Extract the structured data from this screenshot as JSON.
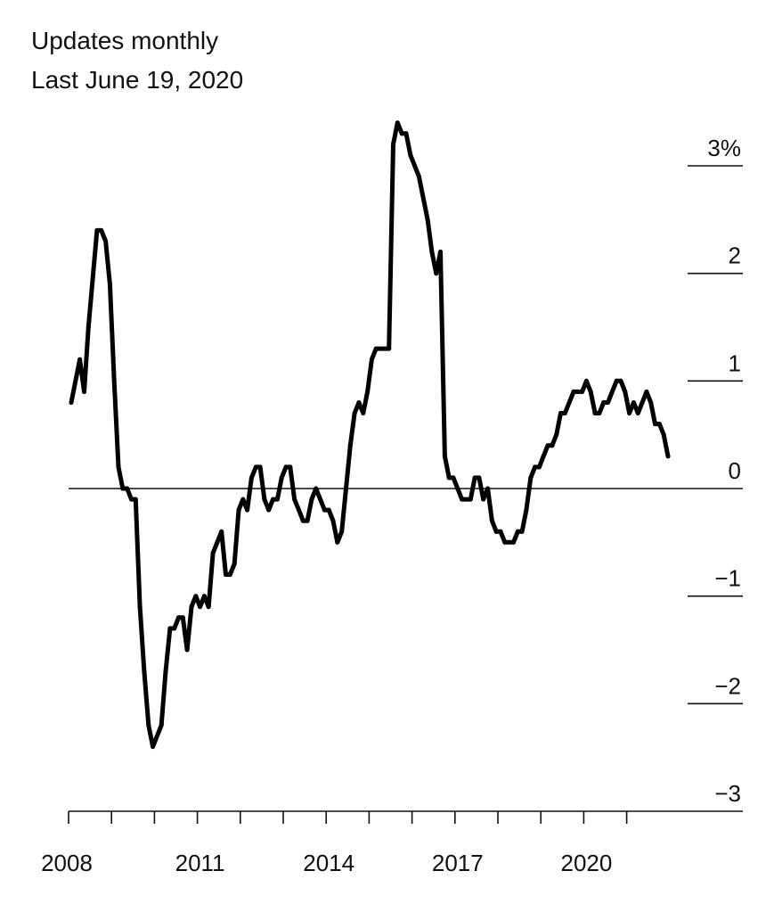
{
  "header": {
    "line1": "Updates monthly",
    "line2": "Last June 19, 2020"
  },
  "chart_data": {
    "type": "line",
    "title": "",
    "xlabel": "",
    "ylabel": "",
    "ylim": [
      -3,
      3
    ],
    "xlim": [
      2008,
      2021.9
    ],
    "y_ticks": [
      {
        "value": 3,
        "label": "3%"
      },
      {
        "value": 2,
        "label": "2"
      },
      {
        "value": 1,
        "label": "1"
      },
      {
        "value": 0,
        "label": "0"
      },
      {
        "value": -1,
        "label": "−1"
      },
      {
        "value": -2,
        "label": "−2"
      },
      {
        "value": -3,
        "label": "−3"
      }
    ],
    "x_labels": [
      {
        "value": 2008,
        "label": "2008"
      },
      {
        "value": 2011,
        "label": "2011"
      },
      {
        "value": 2014,
        "label": "2014"
      },
      {
        "value": 2017,
        "label": "2017"
      },
      {
        "value": 2020,
        "label": "2020"
      }
    ],
    "x_ticks": [
      2008,
      2009,
      2010,
      2011,
      2012,
      2013,
      2014,
      2015,
      2016,
      2017,
      2018,
      2019,
      2020,
      2021
    ],
    "zero_line": true,
    "grid": false,
    "line_color": "#000000",
    "series": [
      {
        "values": [
          {
            "x": 2008.0,
            "y": 0.8
          },
          {
            "x": 2008.2,
            "y": 1.2
          },
          {
            "x": 2008.3,
            "y": 0.9
          },
          {
            "x": 2008.4,
            "y": 1.5
          },
          {
            "x": 2008.6,
            "y": 2.4
          },
          {
            "x": 2008.7,
            "y": 2.4
          },
          {
            "x": 2008.8,
            "y": 2.3
          },
          {
            "x": 2008.9,
            "y": 1.9
          },
          {
            "x": 2009.0,
            "y": 1.0
          },
          {
            "x": 2009.1,
            "y": 0.2
          },
          {
            "x": 2009.2,
            "y": 0.0
          },
          {
            "x": 2009.3,
            "y": 0.0
          },
          {
            "x": 2009.4,
            "y": -0.1
          },
          {
            "x": 2009.5,
            "y": -0.1
          },
          {
            "x": 2009.6,
            "y": -1.1
          },
          {
            "x": 2009.7,
            "y": -1.7
          },
          {
            "x": 2009.8,
            "y": -2.2
          },
          {
            "x": 2009.9,
            "y": -2.4
          },
          {
            "x": 2010.1,
            "y": -2.2
          },
          {
            "x": 2010.2,
            "y": -1.7
          },
          {
            "x": 2010.3,
            "y": -1.3
          },
          {
            "x": 2010.4,
            "y": -1.3
          },
          {
            "x": 2010.5,
            "y": -1.2
          },
          {
            "x": 2010.6,
            "y": -1.2
          },
          {
            "x": 2010.7,
            "y": -1.5
          },
          {
            "x": 2010.8,
            "y": -1.1
          },
          {
            "x": 2010.9,
            "y": -1.0
          },
          {
            "x": 2011.0,
            "y": -1.1
          },
          {
            "x": 2011.1,
            "y": -1.0
          },
          {
            "x": 2011.2,
            "y": -1.1
          },
          {
            "x": 2011.3,
            "y": -0.6
          },
          {
            "x": 2011.5,
            "y": -0.4
          },
          {
            "x": 2011.6,
            "y": -0.8
          },
          {
            "x": 2011.7,
            "y": -0.8
          },
          {
            "x": 2011.8,
            "y": -0.7
          },
          {
            "x": 2011.9,
            "y": -0.2
          },
          {
            "x": 2012.0,
            "y": -0.1
          },
          {
            "x": 2012.1,
            "y": -0.2
          },
          {
            "x": 2012.2,
            "y": 0.1
          },
          {
            "x": 2012.3,
            "y": 0.2
          },
          {
            "x": 2012.4,
            "y": 0.2
          },
          {
            "x": 2012.5,
            "y": -0.1
          },
          {
            "x": 2012.6,
            "y": -0.2
          },
          {
            "x": 2012.7,
            "y": -0.1
          },
          {
            "x": 2012.8,
            "y": -0.1
          },
          {
            "x": 2012.9,
            "y": 0.1
          },
          {
            "x": 2013.0,
            "y": 0.2
          },
          {
            "x": 2013.1,
            "y": 0.2
          },
          {
            "x": 2013.2,
            "y": -0.1
          },
          {
            "x": 2013.3,
            "y": -0.2
          },
          {
            "x": 2013.4,
            "y": -0.3
          },
          {
            "x": 2013.5,
            "y": -0.3
          },
          {
            "x": 2013.6,
            "y": -0.1
          },
          {
            "x": 2013.7,
            "y": 0.0
          },
          {
            "x": 2013.8,
            "y": -0.1
          },
          {
            "x": 2013.9,
            "y": -0.2
          },
          {
            "x": 2014.0,
            "y": -0.2
          },
          {
            "x": 2014.1,
            "y": -0.3
          },
          {
            "x": 2014.2,
            "y": -0.5
          },
          {
            "x": 2014.3,
            "y": -0.4
          },
          {
            "x": 2014.4,
            "y": 0.0
          },
          {
            "x": 2014.5,
            "y": 0.4
          },
          {
            "x": 2014.6,
            "y": 0.7
          },
          {
            "x": 2014.7,
            "y": 0.8
          },
          {
            "x": 2014.8,
            "y": 0.7
          },
          {
            "x": 2014.9,
            "y": 0.9
          },
          {
            "x": 2015.0,
            "y": 1.2
          },
          {
            "x": 2015.1,
            "y": 1.3
          },
          {
            "x": 2015.3,
            "y": 1.3
          },
          {
            "x": 2015.4,
            "y": 1.3
          },
          {
            "x": 2015.5,
            "y": 3.2
          },
          {
            "x": 2015.6,
            "y": 3.4
          },
          {
            "x": 2015.7,
            "y": 3.3
          },
          {
            "x": 2015.8,
            "y": 3.3
          },
          {
            "x": 2015.9,
            "y": 3.1
          },
          {
            "x": 2016.0,
            "y": 3.0
          },
          {
            "x": 2016.1,
            "y": 2.9
          },
          {
            "x": 2016.3,
            "y": 2.5
          },
          {
            "x": 2016.4,
            "y": 2.2
          },
          {
            "x": 2016.5,
            "y": 2.0
          },
          {
            "x": 2016.6,
            "y": 2.2
          },
          {
            "x": 2016.7,
            "y": 0.3
          },
          {
            "x": 2016.8,
            "y": 0.1
          },
          {
            "x": 2016.9,
            "y": 0.1
          },
          {
            "x": 2017.0,
            "y": 0.0
          },
          {
            "x": 2017.1,
            "y": -0.1
          },
          {
            "x": 2017.3,
            "y": -0.1
          },
          {
            "x": 2017.4,
            "y": 0.1
          },
          {
            "x": 2017.5,
            "y": 0.1
          },
          {
            "x": 2017.6,
            "y": -0.1
          },
          {
            "x": 2017.7,
            "y": 0.0
          },
          {
            "x": 2017.8,
            "y": -0.3
          },
          {
            "x": 2017.9,
            "y": -0.4
          },
          {
            "x": 2018.0,
            "y": -0.4
          },
          {
            "x": 2018.1,
            "y": -0.5
          },
          {
            "x": 2018.3,
            "y": -0.5
          },
          {
            "x": 2018.4,
            "y": -0.4
          },
          {
            "x": 2018.5,
            "y": -0.4
          },
          {
            "x": 2018.6,
            "y": -0.2
          },
          {
            "x": 2018.7,
            "y": 0.1
          },
          {
            "x": 2018.8,
            "y": 0.2
          },
          {
            "x": 2018.9,
            "y": 0.2
          },
          {
            "x": 2019.0,
            "y": 0.3
          },
          {
            "x": 2019.1,
            "y": 0.4
          },
          {
            "x": 2019.2,
            "y": 0.4
          },
          {
            "x": 2019.3,
            "y": 0.5
          },
          {
            "x": 2019.4,
            "y": 0.7
          },
          {
            "x": 2019.5,
            "y": 0.7
          },
          {
            "x": 2019.6,
            "y": 0.8
          },
          {
            "x": 2019.7,
            "y": 0.9
          },
          {
            "x": 2019.8,
            "y": 0.9
          },
          {
            "x": 2019.9,
            "y": 0.9
          },
          {
            "x": 2020.0,
            "y": 1.0
          },
          {
            "x": 2020.1,
            "y": 0.9
          },
          {
            "x": 2020.2,
            "y": 0.7
          },
          {
            "x": 2020.3,
            "y": 0.7
          },
          {
            "x": 2020.4,
            "y": 0.8
          },
          {
            "x": 2020.5,
            "y": 0.8
          },
          {
            "x": 2020.6,
            "y": 0.9
          },
          {
            "x": 2020.7,
            "y": 1.0
          },
          {
            "x": 2020.8,
            "y": 1.0
          },
          {
            "x": 2020.9,
            "y": 0.9
          },
          {
            "x": 2021.0,
            "y": 0.7
          },
          {
            "x": 2021.1,
            "y": 0.8
          },
          {
            "x": 2021.2,
            "y": 0.7
          },
          {
            "x": 2021.3,
            "y": 0.8
          },
          {
            "x": 2021.4,
            "y": 0.9
          },
          {
            "x": 2021.5,
            "y": 0.8
          },
          {
            "x": 2021.6,
            "y": 0.6
          },
          {
            "x": 2021.7,
            "y": 0.6
          },
          {
            "x": 2021.8,
            "y": 0.5
          },
          {
            "x": 2021.9,
            "y": 0.3
          }
        ]
      }
    ]
  }
}
